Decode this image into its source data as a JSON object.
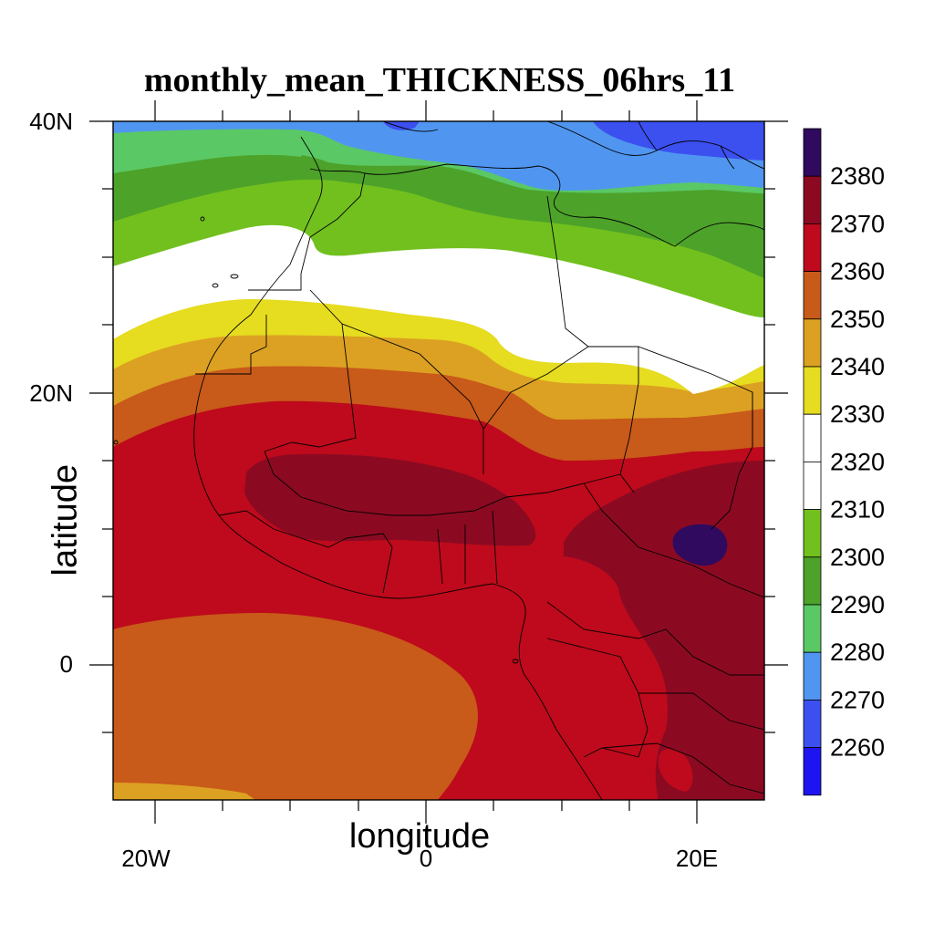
{
  "map": {
    "title": "monthly_mean_THICKNESS_06hrs_11",
    "ylabel": "latitude",
    "xlabel": "longitude",
    "lat_ticks": [
      "40N",
      "20N",
      "0"
    ],
    "lon_ticks": [
      "20W",
      "0",
      "20E"
    ],
    "extent": {
      "lon_min": -23,
      "lon_max": 25,
      "lat_min": -10,
      "lat_max": 40
    }
  },
  "colorbar": {
    "labels": [
      "2380",
      "2370",
      "2360",
      "2350",
      "2340",
      "2330",
      "2320",
      "2310",
      "2300",
      "2290",
      "2280",
      "2270",
      "2260"
    ],
    "colors": [
      "#2f0a5e",
      "#8b0a22",
      "#be0a1c",
      "#c85a1a",
      "#dca122",
      "#e6dc20",
      "#ffffff",
      "#ffffff",
      "#72c01e",
      "#4da22a",
      "#5ac864",
      "#5096f0",
      "#3c50f0",
      "#1e14f0"
    ]
  },
  "chart_data": {
    "type": "heatmap",
    "title": "monthly_mean_THICKNESS_06hrs_11",
    "xlabel": "longitude",
    "ylabel": "latitude",
    "xlim": [
      -23,
      25
    ],
    "ylim": [
      -10,
      40
    ],
    "contour_levels": [
      2260,
      2270,
      2280,
      2290,
      2300,
      2310,
      2320,
      2330,
      2340,
      2350,
      2360,
      2370,
      2380
    ],
    "features": [
      {
        "level": "<2280",
        "region": "northern edge near 40N, Mediterranean / Italy"
      },
      {
        "level": "2310-2330",
        "region": "white band ~28N-32N (Morocco, Algeria, Libya)"
      },
      {
        "level": ">2370",
        "region": "Sahel band ~10N-15N and central Africa"
      },
      {
        "level": ">2380",
        "region": "small maximum near 20E, 9N"
      }
    ]
  }
}
